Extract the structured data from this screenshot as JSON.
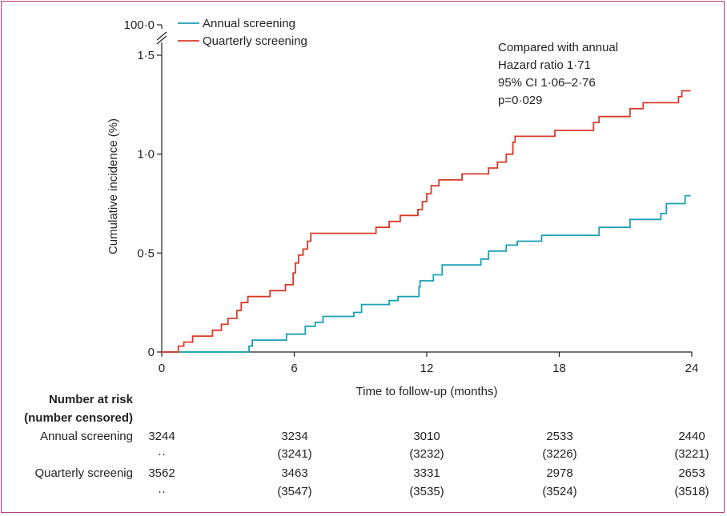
{
  "chart_data": {
    "type": "line",
    "xlabel": "Time to follow-up (months)",
    "ylabel": "Cumulative incidence (%)",
    "x_ticks": [
      "0",
      "6",
      "12",
      "18",
      "24"
    ],
    "y_ticks": [
      "0",
      "0·5",
      "1·0",
      "1·5",
      "100·0"
    ],
    "xlim": [
      0,
      24
    ],
    "ylim": [
      0,
      1.5
    ],
    "y_axis_break": true,
    "legend_position": "top-left",
    "annotation": [
      "Compared with annual",
      "Hazard ratio 1·71",
      "95% CI 1·06–2·76",
      "p=0·029"
    ],
    "series": [
      {
        "name": "Annual screening",
        "color": "#1a9fb5",
        "step": true,
        "points": [
          [
            0,
            0
          ],
          [
            3.95,
            0
          ],
          [
            3.95,
            0.03
          ],
          [
            4.1,
            0.03
          ],
          [
            4.1,
            0.06
          ],
          [
            5.65,
            0.06
          ],
          [
            5.65,
            0.09
          ],
          [
            6.5,
            0.09
          ],
          [
            6.5,
            0.13
          ],
          [
            6.95,
            0.13
          ],
          [
            6.95,
            0.15
          ],
          [
            7.3,
            0.15
          ],
          [
            7.3,
            0.18
          ],
          [
            8.7,
            0.18
          ],
          [
            8.7,
            0.2
          ],
          [
            9.05,
            0.2
          ],
          [
            9.05,
            0.24
          ],
          [
            10.3,
            0.24
          ],
          [
            10.3,
            0.26
          ],
          [
            10.7,
            0.26
          ],
          [
            10.7,
            0.28
          ],
          [
            11.65,
            0.28
          ],
          [
            11.65,
            0.33
          ],
          [
            11.7,
            0.33
          ],
          [
            11.7,
            0.36
          ],
          [
            12.3,
            0.36
          ],
          [
            12.3,
            0.39
          ],
          [
            12.7,
            0.39
          ],
          [
            12.7,
            0.44
          ],
          [
            14.45,
            0.44
          ],
          [
            14.45,
            0.47
          ],
          [
            14.8,
            0.47
          ],
          [
            14.8,
            0.51
          ],
          [
            15.6,
            0.51
          ],
          [
            15.6,
            0.54
          ],
          [
            16.1,
            0.54
          ],
          [
            16.1,
            0.56
          ],
          [
            17.2,
            0.56
          ],
          [
            17.2,
            0.59
          ],
          [
            19.8,
            0.59
          ],
          [
            19.8,
            0.63
          ],
          [
            21.2,
            0.63
          ],
          [
            21.2,
            0.67
          ],
          [
            22.6,
            0.67
          ],
          [
            22.6,
            0.7
          ],
          [
            22.85,
            0.7
          ],
          [
            22.85,
            0.75
          ],
          [
            23.7,
            0.75
          ],
          [
            23.7,
            0.79
          ],
          [
            23.95,
            0.79
          ]
        ]
      },
      {
        "name": "Quarterly screening",
        "color": "#d93a2b",
        "step": true,
        "points": [
          [
            0,
            0
          ],
          [
            0.75,
            0
          ],
          [
            0.75,
            0.03
          ],
          [
            1.0,
            0.03
          ],
          [
            1.0,
            0.05
          ],
          [
            1.4,
            0.05
          ],
          [
            1.4,
            0.08
          ],
          [
            2.3,
            0.08
          ],
          [
            2.3,
            0.11
          ],
          [
            2.7,
            0.11
          ],
          [
            2.7,
            0.14
          ],
          [
            3.0,
            0.14
          ],
          [
            3.0,
            0.17
          ],
          [
            3.4,
            0.17
          ],
          [
            3.4,
            0.21
          ],
          [
            3.6,
            0.21
          ],
          [
            3.6,
            0.25
          ],
          [
            3.9,
            0.25
          ],
          [
            3.9,
            0.28
          ],
          [
            4.9,
            0.28
          ],
          [
            4.9,
            0.31
          ],
          [
            5.6,
            0.31
          ],
          [
            5.6,
            0.34
          ],
          [
            5.95,
            0.34
          ],
          [
            5.95,
            0.4
          ],
          [
            6.05,
            0.4
          ],
          [
            6.05,
            0.45
          ],
          [
            6.2,
            0.45
          ],
          [
            6.2,
            0.49
          ],
          [
            6.4,
            0.49
          ],
          [
            6.4,
            0.52
          ],
          [
            6.6,
            0.52
          ],
          [
            6.6,
            0.56
          ],
          [
            6.75,
            0.56
          ],
          [
            6.75,
            0.6
          ],
          [
            9.7,
            0.6
          ],
          [
            9.7,
            0.63
          ],
          [
            10.3,
            0.63
          ],
          [
            10.3,
            0.66
          ],
          [
            10.8,
            0.66
          ],
          [
            10.8,
            0.69
          ],
          [
            11.6,
            0.69
          ],
          [
            11.6,
            0.72
          ],
          [
            11.8,
            0.72
          ],
          [
            11.8,
            0.76
          ],
          [
            12.0,
            0.76
          ],
          [
            12.0,
            0.8
          ],
          [
            12.2,
            0.8
          ],
          [
            12.2,
            0.84
          ],
          [
            12.55,
            0.84
          ],
          [
            12.55,
            0.87
          ],
          [
            13.6,
            0.87
          ],
          [
            13.6,
            0.9
          ],
          [
            14.8,
            0.9
          ],
          [
            14.8,
            0.93
          ],
          [
            15.2,
            0.93
          ],
          [
            15.2,
            0.96
          ],
          [
            15.6,
            0.96
          ],
          [
            15.6,
            1.0
          ],
          [
            15.9,
            1.0
          ],
          [
            15.9,
            1.06
          ],
          [
            16.0,
            1.06
          ],
          [
            16.0,
            1.09
          ],
          [
            17.8,
            1.09
          ],
          [
            17.8,
            1.12
          ],
          [
            19.55,
            1.12
          ],
          [
            19.55,
            1.16
          ],
          [
            19.8,
            1.16
          ],
          [
            19.8,
            1.19
          ],
          [
            21.2,
            1.19
          ],
          [
            21.2,
            1.23
          ],
          [
            21.8,
            1.23
          ],
          [
            21.8,
            1.26
          ],
          [
            23.4,
            1.26
          ],
          [
            23.4,
            1.29
          ],
          [
            23.55,
            1.29
          ],
          [
            23.55,
            1.32
          ],
          [
            23.95,
            1.32
          ]
        ]
      }
    ]
  },
  "risk_table": {
    "title_line1": "Number at risk",
    "title_line2": "(number censored)",
    "rows": [
      {
        "label": "Annual screening",
        "values": [
          "3244",
          "3234",
          "3010",
          "2533",
          "2440"
        ],
        "censored": [
          "··",
          "(3241)",
          "(3232)",
          "(3226)",
          "(3221)"
        ]
      },
      {
        "label": "Quarterly screenig",
        "values": [
          "3562",
          "3463",
          "3331",
          "2978",
          "2653"
        ],
        "censored": [
          "··",
          "(3547)",
          "(3535)",
          "(3524)",
          "(3518)"
        ]
      }
    ]
  }
}
